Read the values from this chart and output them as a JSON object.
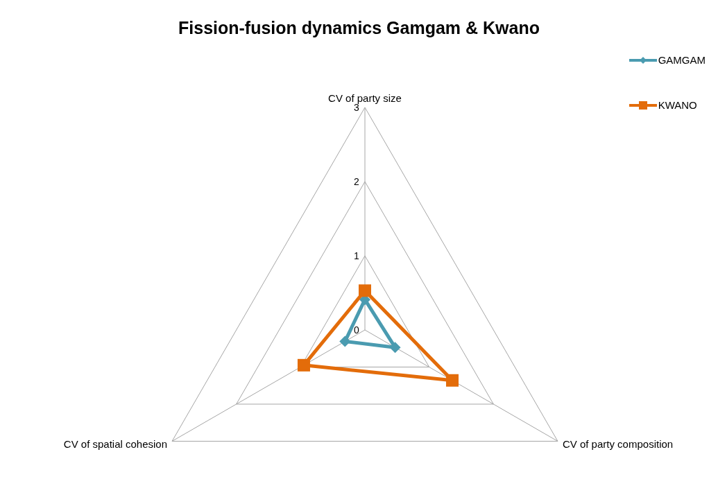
{
  "chart_data": {
    "type": "radar",
    "title": "Fission-fusion dynamics Gamgam & Kwano",
    "categories": [
      "CV of party size",
      "CV of party composition",
      "CV of spatial cohesion"
    ],
    "series": [
      {
        "name": "GAMGAM",
        "color": "#4a9bb0",
        "values": [
          0.41,
          0.47,
          0.31
        ],
        "marker": "diamond"
      },
      {
        "name": "KWANO",
        "color": "#e36c0a",
        "values": [
          0.53,
          1.36,
          0.95
        ],
        "marker": "square"
      }
    ],
    "ylim": [
      0,
      3
    ],
    "yticks": [
      0,
      1,
      2,
      3
    ],
    "grid": true,
    "legend": "top right"
  }
}
